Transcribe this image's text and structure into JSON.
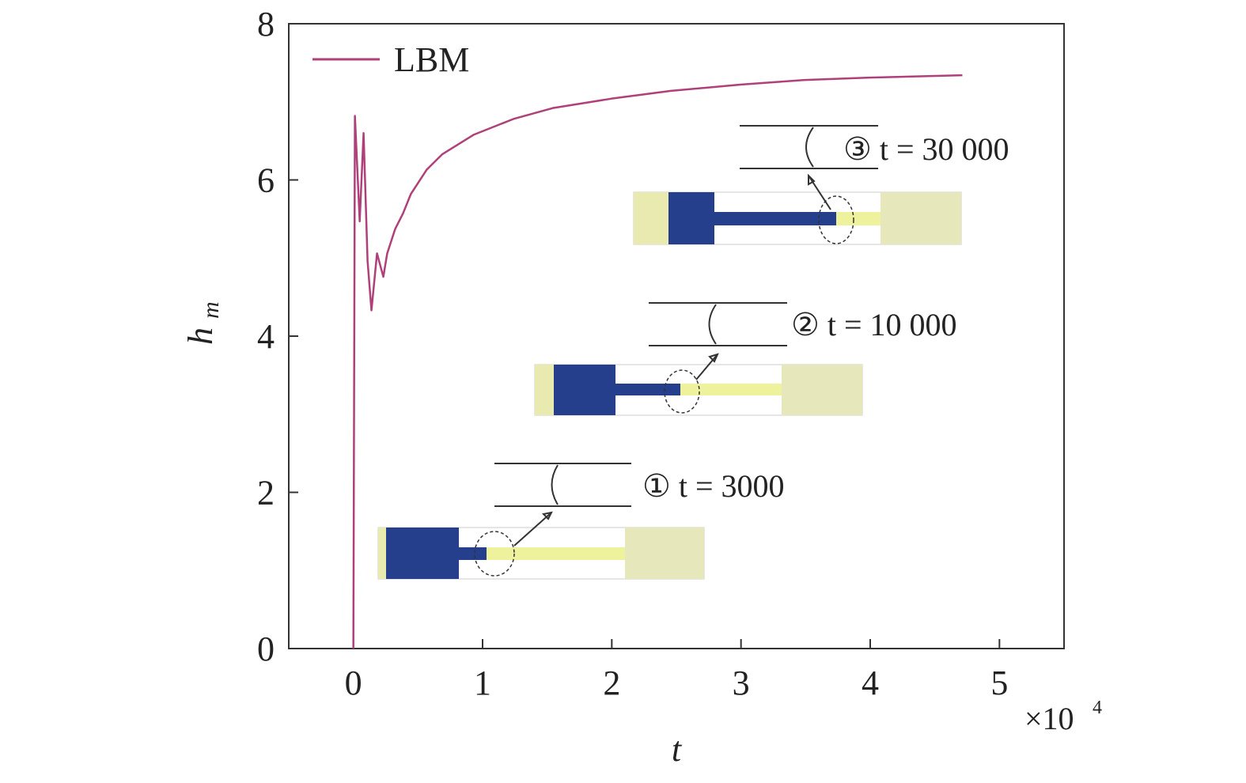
{
  "chart_data": {
    "type": "line",
    "xlabel": "t",
    "ylabel": "h",
    "ylabel_subscript": "m",
    "x_multiplier": "×10",
    "x_multiplier_exponent": "4",
    "xlim": [
      -0.5,
      5.5
    ],
    "xticks": [
      0,
      1,
      2,
      3,
      4,
      5
    ],
    "ylim": [
      0,
      8
    ],
    "yticks": [
      0,
      2,
      4,
      6,
      8
    ],
    "legend": "upper left",
    "series": [
      {
        "name": "LBM",
        "color": "#b0407a",
        "x": [
          0,
          0.012,
          0.049,
          0.079,
          0.11,
          0.14,
          0.183,
          0.232,
          0.262,
          0.323,
          0.384,
          0.445,
          0.567,
          0.689,
          0.933,
          1.238,
          1.543,
          1.994,
          2.457,
          2.994,
          3.494,
          3.994,
          4.713
        ],
        "values": [
          0,
          6.82,
          5.47,
          6.6,
          4.96,
          4.33,
          5.06,
          4.76,
          5.06,
          5.37,
          5.57,
          5.82,
          6.13,
          6.33,
          6.58,
          6.78,
          6.92,
          7.04,
          7.14,
          7.22,
          7.28,
          7.31,
          7.34
        ]
      }
    ],
    "annotations": [
      "① t = 3000",
      "② t = 10 000",
      "③ t = 30 000"
    ]
  }
}
